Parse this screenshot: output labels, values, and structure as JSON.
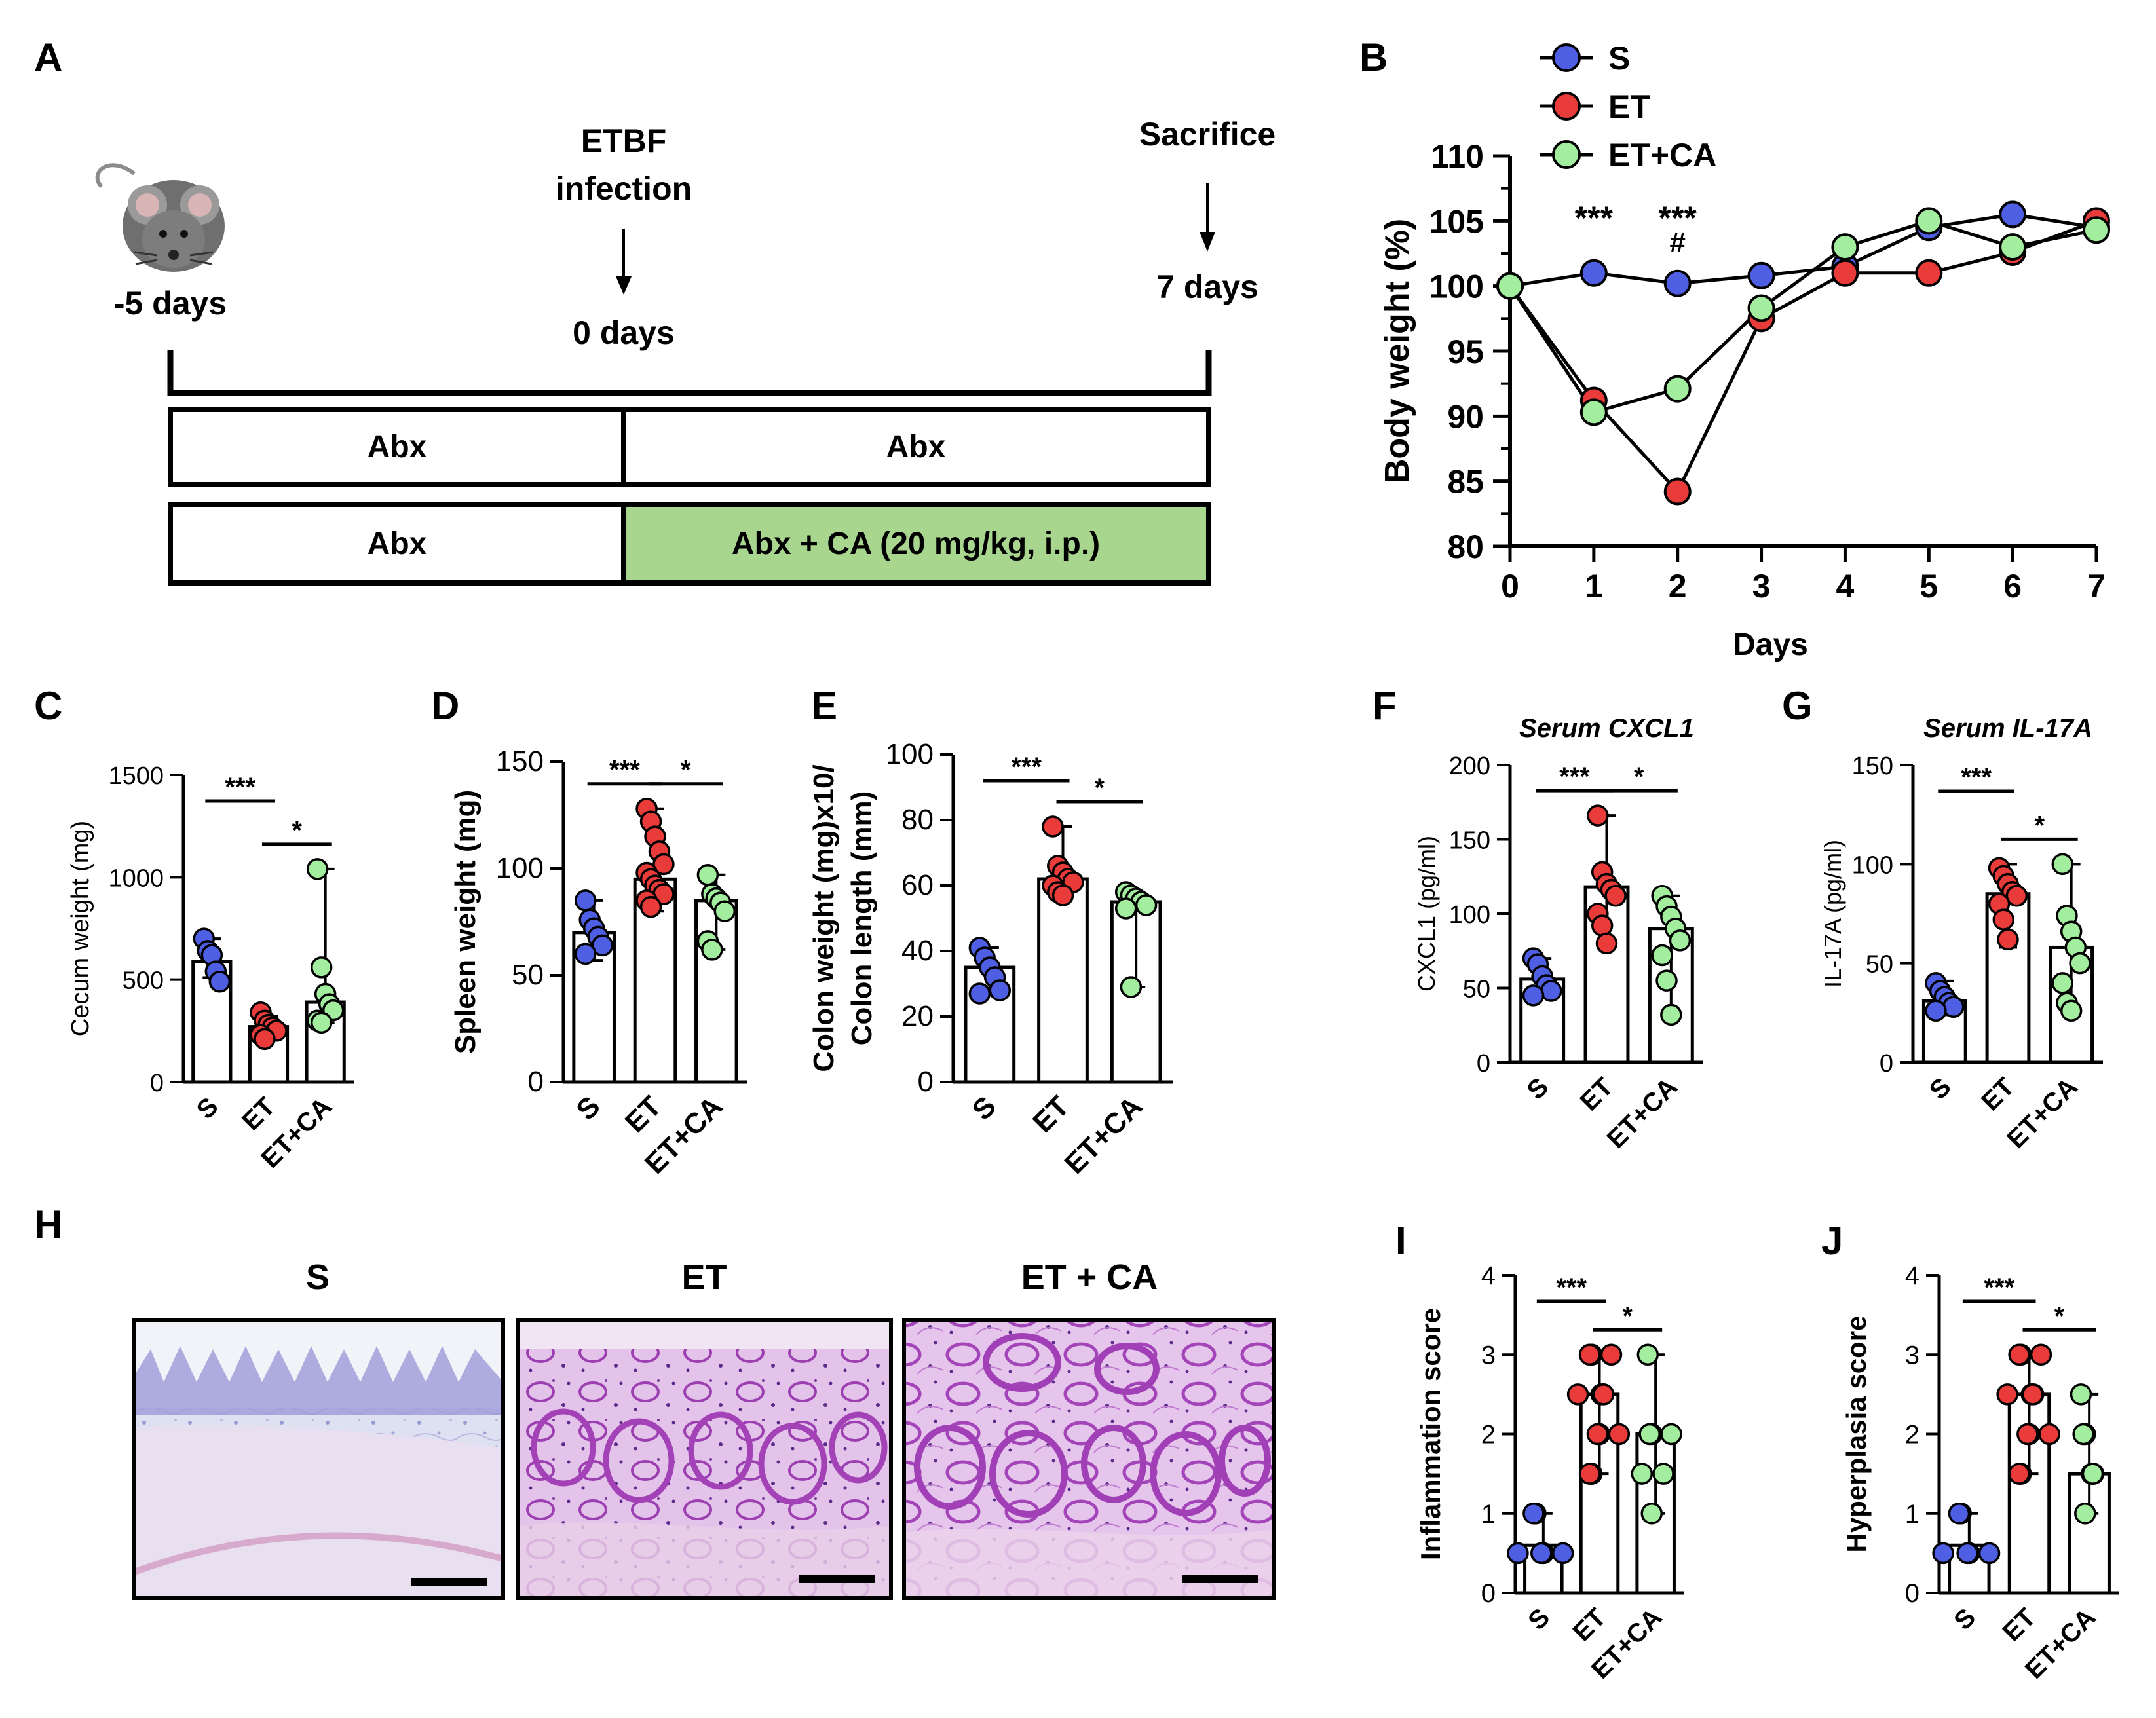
{
  "figure": {
    "panel_labels": [
      "A",
      "B",
      "C",
      "D",
      "E",
      "F",
      "G",
      "H",
      "I",
      "J"
    ],
    "colors": {
      "S": "#4f5fe4",
      "ET": "#ea3b3b",
      "ET+CA": "#a3ee9e",
      "treat_box": "#a9d68f"
    }
  },
  "panel_a": {
    "start_label": "-5 days",
    "infection_label": [
      "ETBF",
      "infection"
    ],
    "infection_day": "0 days",
    "sacrifice_label": "Sacrifice",
    "sacrifice_day": "7 days",
    "row1": [
      "Abx",
      "Abx"
    ],
    "row2": [
      "Abx",
      "Abx + CA (20 mg/kg, i.p.)"
    ],
    "mouse_icon": "mouse-icon"
  },
  "panel_h": {
    "titles": [
      "S",
      "ET",
      "ET + CA"
    ],
    "icons": [
      "histology-s-image",
      "histology-et-image",
      "histology-etca-image"
    ]
  },
  "chart_data": [
    {
      "id": "B",
      "type": "line",
      "xlabel": "Days",
      "ylabel": "Body weight (%)",
      "x": [
        0,
        1,
        2,
        3,
        4,
        5,
        6,
        7
      ],
      "ylim": [
        80,
        110
      ],
      "yticks": [
        80,
        85,
        90,
        95,
        100,
        105,
        110
      ],
      "series": [
        {
          "name": "S",
          "values": [
            100,
            101,
            100.2,
            100.8,
            101.5,
            104.5,
            105.5,
            104.5
          ]
        },
        {
          "name": "ET",
          "values": [
            100,
            91.2,
            84.2,
            97.5,
            101,
            101,
            102.6,
            105
          ]
        },
        {
          "name": "ET+CA",
          "values": [
            100,
            90.3,
            92.1,
            98.3,
            103,
            105,
            103,
            104.3
          ]
        }
      ],
      "legend": [
        "S",
        "ET",
        "ET+CA"
      ],
      "legend_position": "top-left",
      "annotations": [
        {
          "x": 1,
          "text": "***"
        },
        {
          "x": 2,
          "text": "***"
        },
        {
          "x": 2,
          "text": "#"
        }
      ]
    },
    {
      "id": "C",
      "type": "bar",
      "title": "",
      "ylabel": "Cecum weight (mg)",
      "categories": [
        "S",
        "ET",
        "ET+CA"
      ],
      "ylim": [
        0,
        1500
      ],
      "yticks": [
        0,
        500,
        1000,
        1500
      ],
      "values": [
        590,
        270,
        390
      ],
      "error": [
        [
          510,
          700
        ],
        [
          210,
          320
        ],
        [
          290,
          1040
        ]
      ],
      "points": [
        [
          700,
          640,
          620,
          540,
          490
        ],
        [
          340,
          300,
          280,
          265,
          250,
          230,
          210
        ],
        [
          1040,
          560,
          430,
          380,
          350,
          300,
          290
        ]
      ],
      "sig": [
        {
          "from": 0,
          "to": 1,
          "text": "***"
        },
        {
          "from": 1,
          "to": 2,
          "text": "*"
        }
      ]
    },
    {
      "id": "D",
      "type": "bar",
      "title": "",
      "ylabel": "Spleen weight (mg)",
      "categories": [
        "S",
        "ET",
        "ET+CA"
      ],
      "ylim": [
        0,
        150
      ],
      "yticks": [
        0,
        50,
        100,
        150
      ],
      "values": [
        70,
        95,
        85
      ],
      "error": [
        [
          57,
          85
        ],
        [
          80,
          128
        ],
        [
          62,
          97
        ]
      ],
      "points": [
        [
          85,
          76,
          72,
          68,
          64,
          60
        ],
        [
          128,
          122,
          115,
          108,
          102,
          98,
          95,
          92,
          90,
          88,
          85,
          82
        ],
        [
          97,
          88,
          86,
          84,
          80,
          66,
          62
        ]
      ],
      "sig": [
        {
          "from": 0,
          "to": 1,
          "text": "***"
        },
        {
          "from": 1,
          "to": 2,
          "text": "*"
        }
      ]
    },
    {
      "id": "E",
      "type": "bar",
      "title": "",
      "ylabel": [
        "Colon weight (mg)x10/",
        "Colon length (mm)"
      ],
      "categories": [
        "S",
        "ET",
        "ET+CA"
      ],
      "ylim": [
        0,
        100
      ],
      "yticks": [
        0,
        20,
        40,
        60,
        80,
        100
      ],
      "values": [
        35,
        62,
        55
      ],
      "error": [
        [
          27,
          41
        ],
        [
          57,
          78
        ],
        [
          29,
          58
        ]
      ],
      "points": [
        [
          41,
          38,
          35,
          32,
          28,
          27
        ],
        [
          78,
          66,
          64,
          62,
          61,
          60,
          58,
          57
        ],
        [
          58,
          57,
          56,
          55,
          54,
          53,
          29
        ]
      ],
      "sig": [
        {
          "from": 0,
          "to": 1,
          "text": "***"
        },
        {
          "from": 1,
          "to": 2,
          "text": "*"
        }
      ]
    },
    {
      "id": "F",
      "type": "bar",
      "title": "Serum CXCL1",
      "ylabel": "CXCL1 (pg/ml)",
      "categories": [
        "S",
        "ET",
        "ET+CA"
      ],
      "ylim": [
        0,
        200
      ],
      "yticks": [
        0,
        50,
        100,
        150,
        200
      ],
      "values": [
        56,
        118,
        90
      ],
      "error": [
        [
          45,
          70
        ],
        [
          78,
          166
        ],
        [
          32,
          112
        ]
      ],
      "points": [
        [
          70,
          66,
          58,
          52,
          48,
          45
        ],
        [
          166,
          128,
          120,
          116,
          112,
          100,
          92,
          80
        ],
        [
          112,
          105,
          98,
          90,
          82,
          72,
          55,
          32
        ]
      ],
      "sig": [
        {
          "from": 0,
          "to": 1,
          "text": "***"
        },
        {
          "from": 1,
          "to": 2,
          "text": "*"
        }
      ]
    },
    {
      "id": "G",
      "type": "bar",
      "title": "Serum IL-17A",
      "ylabel": "IL-17A (pg/ml)",
      "categories": [
        "S",
        "ET",
        "ET+CA"
      ],
      "ylim": [
        0,
        150
      ],
      "yticks": [
        0,
        50,
        100,
        150
      ],
      "values": [
        31,
        85,
        58
      ],
      "error": [
        [
          24,
          41
        ],
        [
          58,
          100
        ],
        [
          26,
          100
        ]
      ],
      "points": [
        [
          40,
          36,
          33,
          30,
          28,
          26
        ],
        [
          98,
          94,
          90,
          86,
          84,
          80,
          72,
          62
        ],
        [
          100,
          74,
          66,
          58,
          50,
          40,
          30,
          26
        ]
      ],
      "sig": [
        {
          "from": 0,
          "to": 1,
          "text": "***"
        },
        {
          "from": 1,
          "to": 2,
          "text": "*"
        }
      ]
    },
    {
      "id": "I",
      "type": "bar",
      "title": "",
      "ylabel": "Inflammation score",
      "categories": [
        "S",
        "ET",
        "ET+CA"
      ],
      "ylim": [
        0,
        4
      ],
      "yticks": [
        0,
        1,
        2,
        3,
        4
      ],
      "values": [
        0.6,
        2.5,
        2.0
      ],
      "error": [
        [
          0.5,
          1.0
        ],
        [
          1.5,
          3.0
        ],
        [
          1.0,
          3.0
        ]
      ],
      "points": [
        [
          1,
          1,
          0.5,
          0.5,
          0.5,
          0.5
        ],
        [
          3,
          3,
          3,
          2.5,
          2.5,
          2.5,
          2.5,
          2,
          2,
          2,
          1.5,
          1.5
        ],
        [
          3,
          2,
          2,
          2,
          1.5,
          1.5,
          1
        ]
      ],
      "sig": [
        {
          "from": 0,
          "to": 1,
          "text": "***"
        },
        {
          "from": 1,
          "to": 2,
          "text": "*"
        }
      ]
    },
    {
      "id": "J",
      "type": "bar",
      "title": "",
      "ylabel": "Hyperplasia score",
      "categories": [
        "S",
        "ET",
        "ET+CA"
      ],
      "ylim": [
        0,
        4
      ],
      "yticks": [
        0,
        1,
        2,
        3,
        4
      ],
      "values": [
        0.6,
        2.5,
        1.5
      ],
      "error": [
        [
          0.5,
          1.0
        ],
        [
          1.5,
          3.0
        ],
        [
          1.0,
          2.5
        ]
      ],
      "points": [
        [
          1,
          1,
          0.5,
          0.5,
          0.5,
          0.5
        ],
        [
          3,
          3,
          3,
          2.5,
          2.5,
          2.5,
          2.5,
          2,
          2,
          2,
          1.5,
          1.5
        ],
        [
          2.5,
          2,
          2,
          1.5,
          1.5,
          1.5,
          1
        ]
      ],
      "sig": [
        {
          "from": 0,
          "to": 1,
          "text": "***"
        },
        {
          "from": 1,
          "to": 2,
          "text": "*"
        }
      ]
    }
  ]
}
